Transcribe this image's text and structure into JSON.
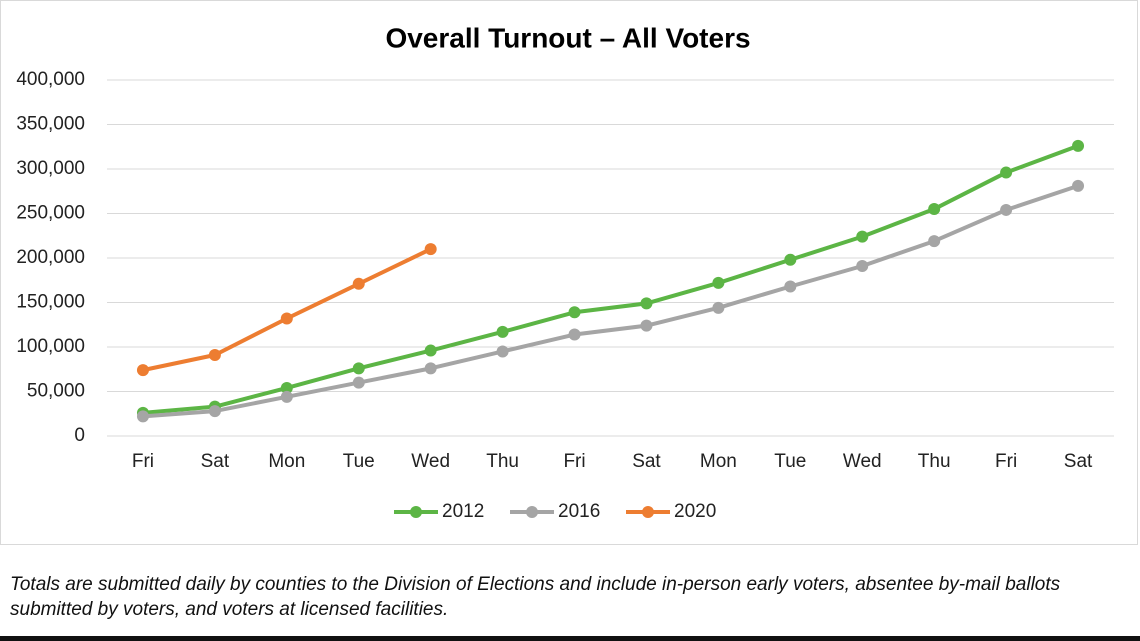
{
  "chart_data": {
    "type": "line",
    "title": "Overall Turnout – All Voters",
    "categories": [
      "Fri",
      "Sat",
      "Mon",
      "Tue",
      "Wed",
      "Thu",
      "Fri",
      "Sat",
      "Mon",
      "Tue",
      "Wed",
      "Thu",
      "Fri",
      "Sat"
    ],
    "series": [
      {
        "name": "2012",
        "color": "#5cb545",
        "values": [
          26000,
          33000,
          54000,
          76000,
          96000,
          117000,
          139000,
          149000,
          172000,
          198000,
          224000,
          255000,
          296000,
          326000
        ]
      },
      {
        "name": "2016",
        "color": "#a5a5a5",
        "values": [
          22000,
          28000,
          44000,
          60000,
          76000,
          95000,
          114000,
          124000,
          144000,
          168000,
          191000,
          219000,
          254000,
          281000
        ]
      },
      {
        "name": "2020",
        "color": "#ed7d31",
        "values": [
          74000,
          91000,
          132000,
          171000,
          210000,
          null,
          null,
          null,
          null,
          null,
          null,
          null,
          null,
          null
        ]
      }
    ],
    "ylim": [
      0,
      400000
    ],
    "yticks": [
      0,
      {
        "value": 50000,
        "label": "50,000"
      },
      {
        "value": 100000,
        "label": "100,000"
      },
      {
        "value": 150000,
        "label": "150,000"
      },
      {
        "value": 200000,
        "label": "200,000"
      },
      {
        "value": 250000,
        "label": "250,000"
      },
      {
        "value": 300000,
        "label": "300,000"
      },
      {
        "value": 350000,
        "label": "350,000"
      },
      {
        "value": 400000,
        "label": "400,000"
      }
    ],
    "grid": true,
    "legend": "bottom",
    "footnote": "Totals are submitted daily by counties to the Division of Elections and include in-person early voters, absentee by-mail ballots submitted by voters, and voters at licensed facilities."
  }
}
